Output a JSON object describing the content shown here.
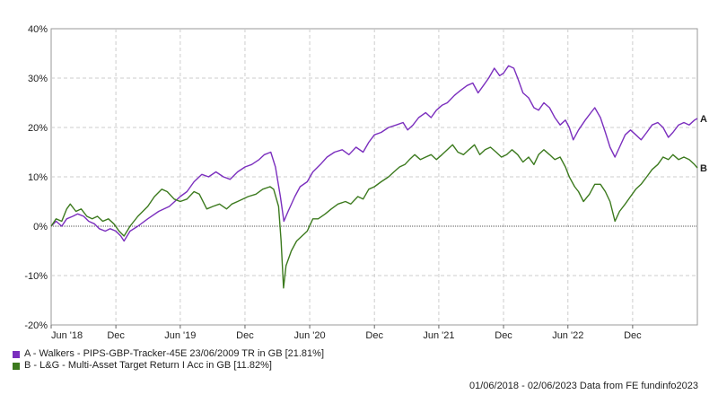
{
  "chart_data": {
    "type": "line",
    "ylim": [
      -20,
      40
    ],
    "y_ticks": [
      -20,
      -10,
      0,
      10,
      20,
      30,
      40
    ],
    "y_tick_labels": [
      "-20%",
      "-10%",
      "0%",
      "10%",
      "20%",
      "30%",
      "40%"
    ],
    "x_range": [
      "2018-06-01",
      "2023-06-02"
    ],
    "x_ticks": [
      "2018-06-01",
      "2018-12-01",
      "2019-06-01",
      "2019-12-01",
      "2020-06-01",
      "2020-12-01",
      "2021-06-01",
      "2021-12-01",
      "2022-06-01",
      "2022-12-01"
    ],
    "x_tick_labels": [
      "Jun '18",
      "Dec",
      "Jun '19",
      "Dec",
      "Jun '20",
      "Dec",
      "Jun '21",
      "Dec",
      "Jun '22",
      "Dec"
    ],
    "grid": true,
    "series": [
      {
        "marker_label": "A",
        "color": "#7b2fbe",
        "points": [
          [
            "2018-06-01",
            0
          ],
          [
            "2018-06-15",
            1
          ],
          [
            "2018-07-01",
            0
          ],
          [
            "2018-07-15",
            1.5
          ],
          [
            "2018-08-01",
            2
          ],
          [
            "2018-08-15",
            2.5
          ],
          [
            "2018-09-01",
            2
          ],
          [
            "2018-09-15",
            1
          ],
          [
            "2018-10-01",
            0.5
          ],
          [
            "2018-10-15",
            -0.5
          ],
          [
            "2018-11-01",
            -1
          ],
          [
            "2018-11-15",
            -0.5
          ],
          [
            "2018-12-01",
            -1
          ],
          [
            "2018-12-15",
            -2
          ],
          [
            "2018-12-24",
            -3
          ],
          [
            "2019-01-10",
            -1
          ],
          [
            "2019-02-01",
            0
          ],
          [
            "2019-03-01",
            1.5
          ],
          [
            "2019-04-01",
            3
          ],
          [
            "2019-05-01",
            4
          ],
          [
            "2019-06-01",
            6
          ],
          [
            "2019-06-20",
            7
          ],
          [
            "2019-07-10",
            9
          ],
          [
            "2019-08-01",
            10.5
          ],
          [
            "2019-08-20",
            10
          ],
          [
            "2019-09-10",
            11
          ],
          [
            "2019-10-01",
            10
          ],
          [
            "2019-10-20",
            9.5
          ],
          [
            "2019-11-10",
            11
          ],
          [
            "2019-12-01",
            12
          ],
          [
            "2019-12-20",
            12.5
          ],
          [
            "2020-01-10",
            13.5
          ],
          [
            "2020-01-25",
            14.5
          ],
          [
            "2020-02-12",
            15
          ],
          [
            "2020-02-25",
            12
          ],
          [
            "2020-03-10",
            6
          ],
          [
            "2020-03-20",
            1
          ],
          [
            "2020-04-01",
            3
          ],
          [
            "2020-04-20",
            6
          ],
          [
            "2020-05-05",
            8
          ],
          [
            "2020-05-25",
            9
          ],
          [
            "2020-06-10",
            11
          ],
          [
            "2020-07-01",
            12.5
          ],
          [
            "2020-07-20",
            14
          ],
          [
            "2020-08-10",
            15
          ],
          [
            "2020-09-01",
            15.5
          ],
          [
            "2020-09-20",
            14.5
          ],
          [
            "2020-10-10",
            16
          ],
          [
            "2020-10-30",
            15
          ],
          [
            "2020-11-15",
            17
          ],
          [
            "2020-12-01",
            18.5
          ],
          [
            "2020-12-20",
            19
          ],
          [
            "2021-01-10",
            20
          ],
          [
            "2021-02-01",
            20.5
          ],
          [
            "2021-02-20",
            21
          ],
          [
            "2021-03-05",
            19.5
          ],
          [
            "2021-03-20",
            20.5
          ],
          [
            "2021-04-05",
            22
          ],
          [
            "2021-04-25",
            23
          ],
          [
            "2021-05-10",
            22
          ],
          [
            "2021-05-25",
            23.5
          ],
          [
            "2021-06-10",
            24.5
          ],
          [
            "2021-06-25",
            25
          ],
          [
            "2021-07-15",
            26.5
          ],
          [
            "2021-08-01",
            27.5
          ],
          [
            "2021-08-20",
            28.5
          ],
          [
            "2021-09-05",
            29
          ],
          [
            "2021-09-20",
            27
          ],
          [
            "2021-10-05",
            28.5
          ],
          [
            "2021-10-20",
            30
          ],
          [
            "2021-11-05",
            32
          ],
          [
            "2021-11-20",
            30.5
          ],
          [
            "2021-12-01",
            31
          ],
          [
            "2021-12-15",
            32.5
          ],
          [
            "2021-12-30",
            32
          ],
          [
            "2022-01-10",
            30
          ],
          [
            "2022-01-25",
            27
          ],
          [
            "2022-02-10",
            26
          ],
          [
            "2022-02-25",
            24
          ],
          [
            "2022-03-10",
            23.5
          ],
          [
            "2022-03-25",
            25
          ],
          [
            "2022-04-10",
            24
          ],
          [
            "2022-04-25",
            22
          ],
          [
            "2022-05-10",
            20.5
          ],
          [
            "2022-05-25",
            21.5
          ],
          [
            "2022-06-05",
            20
          ],
          [
            "2022-06-16",
            17.5
          ],
          [
            "2022-07-01",
            19.5
          ],
          [
            "2022-07-20",
            21.5
          ],
          [
            "2022-08-05",
            23
          ],
          [
            "2022-08-16",
            24
          ],
          [
            "2022-09-01",
            22
          ],
          [
            "2022-09-15",
            19
          ],
          [
            "2022-09-28",
            16
          ],
          [
            "2022-10-12",
            14
          ],
          [
            "2022-10-25",
            16
          ],
          [
            "2022-11-10",
            18.5
          ],
          [
            "2022-11-25",
            19.5
          ],
          [
            "2022-12-10",
            18.5
          ],
          [
            "2022-12-25",
            17.5
          ],
          [
            "2023-01-10",
            19
          ],
          [
            "2023-01-25",
            20.5
          ],
          [
            "2023-02-10",
            21
          ],
          [
            "2023-02-25",
            20
          ],
          [
            "2023-03-12",
            18
          ],
          [
            "2023-03-25",
            19
          ],
          [
            "2023-04-10",
            20.5
          ],
          [
            "2023-04-25",
            21
          ],
          [
            "2023-05-10",
            20.5
          ],
          [
            "2023-05-25",
            21.5
          ],
          [
            "2023-06-02",
            21.81
          ]
        ]
      },
      {
        "marker_label": "B",
        "color": "#3c7a1e",
        "points": [
          [
            "2018-06-01",
            0
          ],
          [
            "2018-06-15",
            1.5
          ],
          [
            "2018-07-01",
            1
          ],
          [
            "2018-07-15",
            3.5
          ],
          [
            "2018-07-25",
            4.5
          ],
          [
            "2018-08-10",
            3
          ],
          [
            "2018-08-25",
            3.5
          ],
          [
            "2018-09-10",
            2
          ],
          [
            "2018-09-25",
            1.5
          ],
          [
            "2018-10-10",
            2
          ],
          [
            "2018-10-25",
            1
          ],
          [
            "2018-11-10",
            1.5
          ],
          [
            "2018-11-25",
            0.5
          ],
          [
            "2018-12-10",
            -1
          ],
          [
            "2018-12-24",
            -2
          ],
          [
            "2019-01-10",
            0
          ],
          [
            "2019-02-01",
            2
          ],
          [
            "2019-03-01",
            4
          ],
          [
            "2019-03-20",
            6
          ],
          [
            "2019-04-10",
            7.5
          ],
          [
            "2019-04-25",
            7
          ],
          [
            "2019-05-15",
            5.5
          ],
          [
            "2019-06-01",
            5
          ],
          [
            "2019-06-20",
            5.5
          ],
          [
            "2019-07-10",
            7
          ],
          [
            "2019-07-25",
            6.5
          ],
          [
            "2019-08-15",
            3.5
          ],
          [
            "2019-09-01",
            4
          ],
          [
            "2019-09-20",
            4.5
          ],
          [
            "2019-10-10",
            3.5
          ],
          [
            "2019-10-25",
            4.5
          ],
          [
            "2019-11-10",
            5
          ],
          [
            "2019-11-25",
            5.5
          ],
          [
            "2019-12-10",
            6
          ],
          [
            "2020-01-01",
            6.5
          ],
          [
            "2020-01-20",
            7.5
          ],
          [
            "2020-02-10",
            8
          ],
          [
            "2020-02-20",
            7.5
          ],
          [
            "2020-03-05",
            4
          ],
          [
            "2020-03-12",
            -3
          ],
          [
            "2020-03-19",
            -12.5
          ],
          [
            "2020-03-26",
            -8
          ],
          [
            "2020-04-10",
            -5
          ],
          [
            "2020-04-25",
            -3
          ],
          [
            "2020-05-10",
            -2
          ],
          [
            "2020-05-25",
            -1
          ],
          [
            "2020-06-10",
            1.5
          ],
          [
            "2020-06-25",
            1.5
          ],
          [
            "2020-07-15",
            2.5
          ],
          [
            "2020-08-01",
            3.5
          ],
          [
            "2020-08-20",
            4.5
          ],
          [
            "2020-09-10",
            5
          ],
          [
            "2020-09-25",
            4.5
          ],
          [
            "2020-10-15",
            6
          ],
          [
            "2020-10-30",
            5.5
          ],
          [
            "2020-11-15",
            7.5
          ],
          [
            "2020-12-01",
            8
          ],
          [
            "2020-12-20",
            9
          ],
          [
            "2021-01-10",
            10
          ],
          [
            "2021-01-25",
            11
          ],
          [
            "2021-02-10",
            12
          ],
          [
            "2021-02-25",
            12.5
          ],
          [
            "2021-03-10",
            13.5
          ],
          [
            "2021-03-25",
            14.5
          ],
          [
            "2021-04-10",
            13.5
          ],
          [
            "2021-04-25",
            14
          ],
          [
            "2021-05-10",
            14.5
          ],
          [
            "2021-05-25",
            13.5
          ],
          [
            "2021-06-10",
            14.5
          ],
          [
            "2021-06-25",
            15.5
          ],
          [
            "2021-07-10",
            16.5
          ],
          [
            "2021-07-25",
            15
          ],
          [
            "2021-08-10",
            14.5
          ],
          [
            "2021-08-25",
            15.5
          ],
          [
            "2021-09-10",
            16.5
          ],
          [
            "2021-09-25",
            14.5
          ],
          [
            "2021-10-10",
            15.5
          ],
          [
            "2021-10-25",
            16
          ],
          [
            "2021-11-10",
            15
          ],
          [
            "2021-11-25",
            14
          ],
          [
            "2021-12-10",
            14.5
          ],
          [
            "2021-12-25",
            15.5
          ],
          [
            "2022-01-10",
            14.5
          ],
          [
            "2022-01-25",
            13
          ],
          [
            "2022-02-10",
            14
          ],
          [
            "2022-02-25",
            12.5
          ],
          [
            "2022-03-10",
            14.5
          ],
          [
            "2022-03-25",
            15.5
          ],
          [
            "2022-04-10",
            14.5
          ],
          [
            "2022-04-25",
            13.5
          ],
          [
            "2022-05-10",
            14
          ],
          [
            "2022-05-25",
            12
          ],
          [
            "2022-06-05",
            10
          ],
          [
            "2022-06-20",
            8
          ],
          [
            "2022-07-01",
            7
          ],
          [
            "2022-07-15",
            5
          ],
          [
            "2022-08-01",
            6.5
          ],
          [
            "2022-08-16",
            8.5
          ],
          [
            "2022-09-01",
            8.5
          ],
          [
            "2022-09-15",
            7
          ],
          [
            "2022-09-28",
            5
          ],
          [
            "2022-10-12",
            1
          ],
          [
            "2022-10-25",
            3
          ],
          [
            "2022-11-10",
            4.5
          ],
          [
            "2022-11-25",
            6
          ],
          [
            "2022-12-10",
            7.5
          ],
          [
            "2022-12-25",
            8.5
          ],
          [
            "2023-01-10",
            10
          ],
          [
            "2023-01-25",
            11.5
          ],
          [
            "2023-02-10",
            12.5
          ],
          [
            "2023-02-25",
            14
          ],
          [
            "2023-03-12",
            13.5
          ],
          [
            "2023-03-25",
            14.5
          ],
          [
            "2023-04-10",
            13.5
          ],
          [
            "2023-04-25",
            14
          ],
          [
            "2023-05-10",
            13.5
          ],
          [
            "2023-05-25",
            12.5
          ],
          [
            "2023-06-02",
            11.82
          ]
        ]
      }
    ]
  },
  "legend": [
    {
      "label": "A - Walkers - PIPS-GBP-Tracker-45E 23/06/2009 TR in GB [21.81%]",
      "color": "#7b2fbe"
    },
    {
      "label": "B - L&G - Multi-Asset Target Return I Acc in GB [11.82%]",
      "color": "#3c7a1e"
    }
  ],
  "footer": "01/06/2018 - 02/06/2023 Data from FE fundinfo2023"
}
